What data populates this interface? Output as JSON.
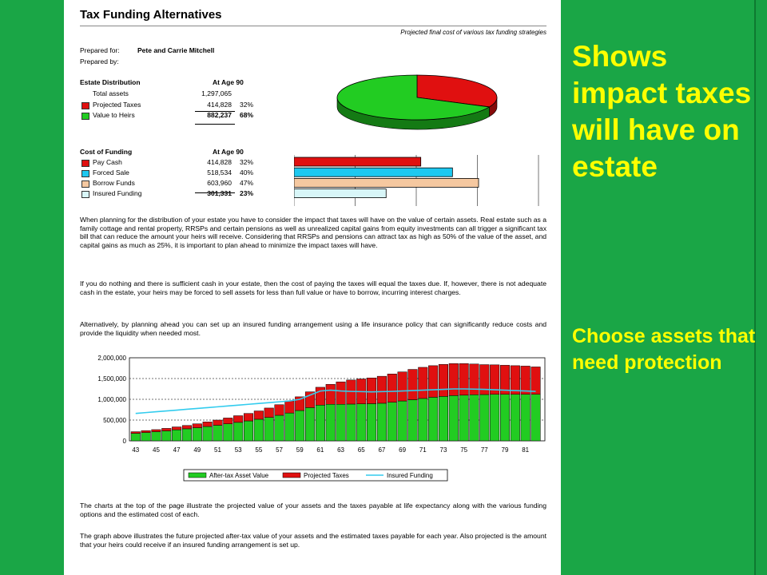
{
  "doc": {
    "title": "Tax Funding Alternatives",
    "subtitle": "Projected final cost of various tax funding strategies",
    "prepared_for_label": "Prepared for:",
    "prepared_for_value": "Pete and Carrie Mitchell",
    "prepared_by_label": "Prepared by:",
    "estate": {
      "heading": "Estate Distribution",
      "col": "At Age 90",
      "total_label": "Total assets",
      "total_value": "1,297,065",
      "rows": [
        {
          "label": "Projected Taxes",
          "value": "414,828",
          "pct": "32%",
          "color": "#e01010"
        },
        {
          "label": "Value to Heirs",
          "value": "882,237",
          "pct": "68%",
          "color": "#22cc22"
        }
      ]
    },
    "cost": {
      "heading": "Cost of Funding",
      "col": "At Age 90",
      "rows": [
        {
          "label": "Pay Cash",
          "value": "414,828",
          "pct": "32%",
          "color": "#e01010",
          "amount": 414828
        },
        {
          "label": "Forced Sale",
          "value": "518,534",
          "pct": "40%",
          "color": "#1ec8f0",
          "amount": 518534
        },
        {
          "label": "Borrow Funds",
          "value": "603,960",
          "pct": "47%",
          "color": "#f5c8a0",
          "amount": 603960
        },
        {
          "label": "Insured Funding",
          "value": "301,331",
          "pct": "23%",
          "color": "#d8f6f8",
          "amount": 301331
        }
      ]
    },
    "paragraphs": [
      "When planning for the distribution of your estate you have to consider the impact that taxes will have on the value of certain assets.  Real estate such as a family cottage and rental property, RRSPs and certain pensions as well as unrealized capital gains from equity investments can all trigger a significant tax bill that can reduce the amount your heirs will receive.  Considering that RRSPs and pensions can attract tax as high as 50% of the value of the asset, and capital gains as much as 25%, it is important to plan ahead to minimize the impact taxes will have.",
      "If you do nothing and there is sufficient cash in your estate, then the cost of paying the taxes will equal the taxes due.  If, however, there is not adequate cash in the estate, your heirs may be forced to sell assets for less than full value or have to borrow, incurring interest charges.",
      "Alternatively, by planning ahead you can set up an insured funding arrangement using a life insurance policy that can significantly reduce costs and provide the liquidity when needed most."
    ],
    "footer_paragraphs": [
      "The charts at the top of the page illustrate the projected value of your assets and the taxes payable at life expectancy along with the various funding options and the estimated cost of each.",
      "The graph above illustrates the future projected after-tax value of your assets and the estimated taxes payable for each year.  Also projected is the amount that your heirs could receive if an insured funding arrangement is set up."
    ]
  },
  "sidebar": {
    "headline": "Shows impact taxes will have on estate",
    "sub": "Choose assets that need protection"
  },
  "chart_data": [
    {
      "type": "pie",
      "labels": [
        "Projected Taxes",
        "Value to Heirs"
      ],
      "values": [
        32,
        68
      ],
      "colors": [
        "#e01010",
        "#22cc22"
      ]
    },
    {
      "type": "bar",
      "orientation": "horizontal",
      "categories": [
        "Pay Cash",
        "Forced Sale",
        "Borrow Funds",
        "Insured Funding"
      ],
      "values": [
        414828,
        518534,
        603960,
        301331
      ],
      "colors": [
        "#e01010",
        "#1ec8f0",
        "#f5c8a0",
        "#d8f6f8"
      ]
    },
    {
      "type": "bar",
      "stacked": true,
      "x": [
        43,
        44,
        45,
        46,
        47,
        48,
        49,
        50,
        51,
        52,
        53,
        54,
        55,
        56,
        57,
        58,
        59,
        60,
        61,
        62,
        63,
        64,
        65,
        66,
        67,
        68,
        69,
        70,
        71,
        72,
        73,
        74,
        75,
        76,
        77,
        78,
        79,
        80,
        81,
        82
      ],
      "xticks": [
        43,
        45,
        47,
        49,
        51,
        53,
        55,
        57,
        59,
        61,
        63,
        65,
        67,
        69,
        71,
        73,
        75,
        77,
        79,
        81
      ],
      "ylim": [
        0,
        2000000
      ],
      "yticks": [
        "0",
        "500,000",
        "1,000,000",
        "1,500,000",
        "2,000,000"
      ],
      "yticks_values": [
        0,
        500000,
        1000000,
        1500000,
        2000000
      ],
      "legend": [
        "After-tax Asset Value",
        "Projected Taxes",
        "Insured Funding"
      ],
      "series": [
        {
          "name": "After-tax Asset Value",
          "color": "#22cc22",
          "values": [
            180000,
            200000,
            220000,
            240000,
            265000,
            290000,
            315000,
            345000,
            375000,
            410000,
            445000,
            480000,
            520000,
            565000,
            615000,
            670000,
            730000,
            800000,
            860000,
            880000,
            880000,
            885000,
            890000,
            895000,
            905000,
            930000,
            960000,
            990000,
            1020000,
            1050000,
            1070000,
            1090000,
            1100000,
            1110000,
            1115000,
            1120000,
            1120000,
            1120000,
            1120000,
            1120000
          ]
        },
        {
          "name": "Projected Taxes",
          "color": "#e01010",
          "values": [
            40000,
            45000,
            50000,
            60000,
            70000,
            80000,
            95000,
            110000,
            125000,
            140000,
            160000,
            180000,
            200000,
            225000,
            255000,
            290000,
            330000,
            380000,
            430000,
            480000,
            540000,
            580000,
            600000,
            620000,
            650000,
            680000,
            700000,
            730000,
            750000,
            760000,
            770000,
            770000,
            760000,
            740000,
            720000,
            710000,
            700000,
            690000,
            680000,
            660000
          ]
        },
        {
          "name": "Insured Funding",
          "color": "#33ccee",
          "type": "line",
          "values": [
            660000,
            680000,
            700000,
            720000,
            740000,
            760000,
            780000,
            800000,
            820000,
            840000,
            860000,
            880000,
            900000,
            920000,
            940000,
            960000,
            1000000,
            1100000,
            1200000,
            1220000,
            1200000,
            1190000,
            1185000,
            1180000,
            1185000,
            1190000,
            1200000,
            1210000,
            1220000,
            1230000,
            1240000,
            1250000,
            1250000,
            1245000,
            1240000,
            1230000,
            1220000,
            1210000,
            1200000,
            1190000
          ]
        }
      ]
    }
  ]
}
